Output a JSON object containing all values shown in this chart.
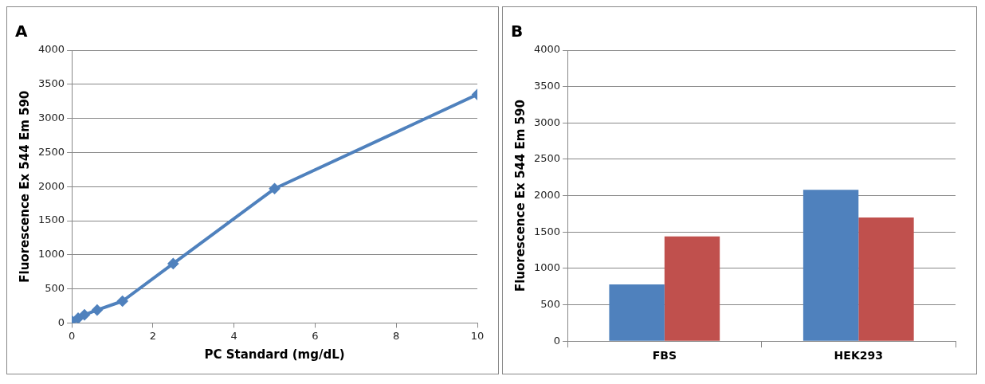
{
  "chart_data": [
    {
      "type": "line",
      "title": "A",
      "xlabel": "PC Standard (mg/dL)",
      "ylabel": "Fluorescence Ex 544 Em 590",
      "x": [
        0,
        0.156,
        0.3125,
        0.625,
        1.25,
        2.5,
        5,
        10
      ],
      "series": [
        {
          "color": "#4f81bd",
          "values": [
            30,
            70,
            120,
            190,
            320,
            870,
            1970,
            3350
          ]
        }
      ],
      "xlim": [
        0,
        10
      ],
      "xticks": [
        0,
        2,
        4,
        6,
        8,
        10
      ],
      "ylim": [
        0,
        4000
      ],
      "yticks": [
        0,
        500,
        1000,
        1500,
        2000,
        2500,
        3000,
        3500,
        4000
      ],
      "grid": "y",
      "legend": false,
      "marker": "diamond",
      "line_style": "solid"
    },
    {
      "type": "bar",
      "title": "B",
      "ylabel": "Fluorescence Ex 544 Em 590",
      "categories": [
        "FBS",
        "HEK293"
      ],
      "series": [
        {
          "color": "#4f81bd",
          "values": [
            780,
            2080
          ]
        },
        {
          "color": "#c0504d",
          "values": [
            1440,
            1700
          ]
        }
      ],
      "ylim": [
        0,
        4000
      ],
      "yticks": [
        0,
        500,
        1000,
        1500,
        2000,
        2500,
        3000,
        3500,
        4000
      ],
      "grid": "y",
      "legend": false
    }
  ]
}
